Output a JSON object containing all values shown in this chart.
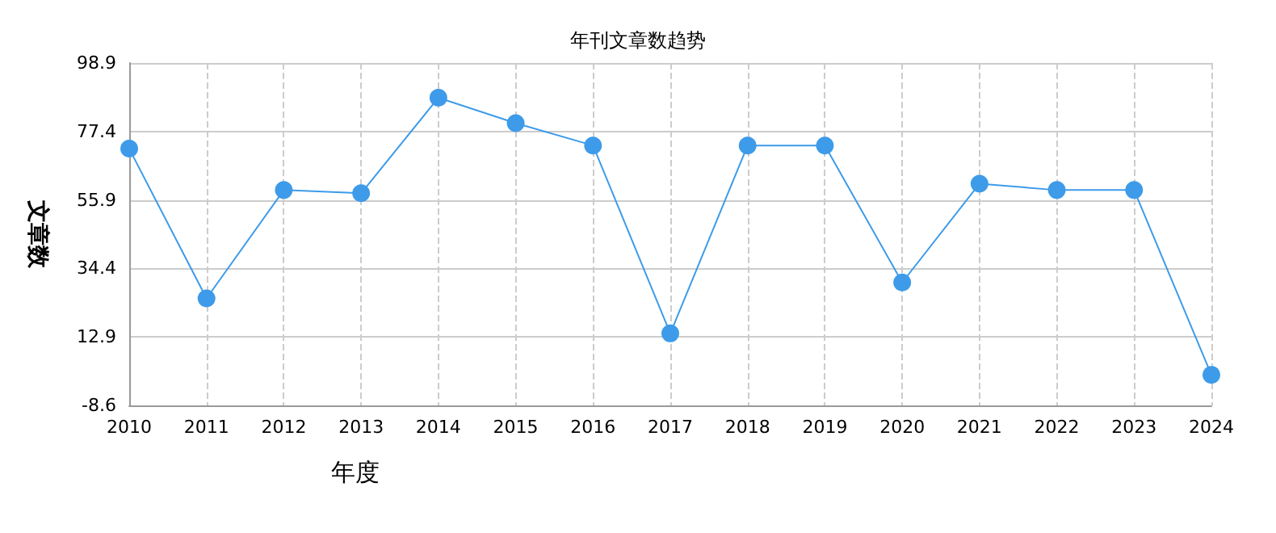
{
  "chart_data": {
    "type": "line",
    "title": "年刊文章数趋势",
    "xlabel": "年度",
    "ylabel": "文章数",
    "categories": [
      "2010",
      "2011",
      "2012",
      "2013",
      "2014",
      "2015",
      "2016",
      "2017",
      "2018",
      "2019",
      "2020",
      "2021",
      "2022",
      "2023",
      "2024"
    ],
    "series": [
      {
        "color": "#3d9be9",
        "values": [
          72,
          25,
          59,
          58,
          88,
          80,
          73,
          14,
          73,
          73,
          30,
          61,
          59,
          59,
          1
        ]
      }
    ],
    "ylim": [
      -8.6,
      98.9
    ],
    "yticks": [
      -8.6,
      12.9,
      34.4,
      55.9,
      77.4,
      98.9
    ],
    "grid": true,
    "marker": "circle",
    "line_style": "solid"
  }
}
